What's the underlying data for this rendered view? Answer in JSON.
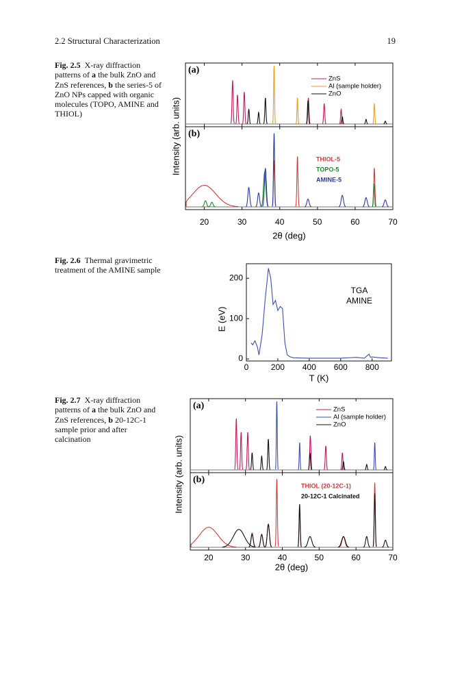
{
  "header": {
    "section": "2.2 Structural Characterization",
    "page": "19"
  },
  "figures": [
    {
      "label": "Fig. 2.5",
      "caption": [
        "X-ray diffraction patterns of ",
        "a",
        " the bulk ZnO and ZnS references, ",
        "b",
        " the series-5 of ZnO NPs capped with organic molecules (TOPO, AMINE and THIOL)"
      ],
      "chart_data": {
        "type": "xrd",
        "xlabel": "2θ (deg)",
        "ylabel": "Intensity (arb. units)",
        "xlim": [
          15,
          70
        ],
        "xticks": [
          20,
          30,
          40,
          50,
          60,
          70
        ],
        "panels": [
          {
            "label": "(a)",
            "legend": "lines",
            "ylim": [
              0,
              100
            ],
            "series": [
              {
                "name": "ZnS",
                "color": "#c2185b",
                "x": [
                  27.5,
                  28.8,
                  30.6,
                  47.6,
                  51.8,
                  56.3
                ],
                "values": [
                  75,
                  50,
                  55,
                  45,
                  35,
                  25
                ],
                "widths": [
                  0.15,
                  0.15,
                  0.15,
                  0.15,
                  0.15,
                  0.15
                ]
              },
              {
                "name": "Al (sample holder)",
                "color": "#f39c12",
                "x": [
                  38.5,
                  44.7,
                  65.1
                ],
                "values": [
                  100,
                  45,
                  35
                ],
                "widths": [
                  0.12,
                  0.12,
                  0.12
                ]
              },
              {
                "name": "ZnO",
                "color": "#111111",
                "x": [
                  31.8,
                  34.4,
                  36.2,
                  47.5,
                  56.6,
                  62.9,
                  68
                ],
                "values": [
                  25,
                  20,
                  45,
                  40,
                  12,
                  8,
                  5
                ],
                "widths": [
                  0.15,
                  0.15,
                  0.15,
                  0.15,
                  0.15,
                  0.15,
                  0.15
                ]
              }
            ]
          },
          {
            "label": "(b)",
            "legend": "text",
            "ylim": [
              0,
              100
            ],
            "series": [
              {
                "name": "THIOL-5",
                "color": "#d43a3a",
                "x": [
                  20,
                  38.5,
                  44.7,
                  65.1
                ],
                "values": [
                  28,
                  60,
                  65,
                  50
                ],
                "widths": [
                  3,
                  0.15,
                  0.15,
                  0.15
                ]
              },
              {
                "name": "TOPO-5",
                "color": "#1a8a2a",
                "x": [
                  20.3,
                  22,
                  36,
                  65
                ],
                "values": [
                  8,
                  6,
                  45,
                  30
                ],
                "widths": [
                  0.3,
                  0.3,
                  0.3,
                  0.15
                ]
              },
              {
                "name": "AMINE-5",
                "color": "#2b3aa8",
                "x": [
                  31.8,
                  34.4,
                  36.2,
                  38.5,
                  47.5,
                  56.6,
                  62.9,
                  68
                ],
                "values": [
                  25,
                  18,
                  50,
                  95,
                  10,
                  15,
                  12,
                  9
                ],
                "widths": [
                  0.25,
                  0.25,
                  0.25,
                  0.15,
                  0.3,
                  0.3,
                  0.3,
                  0.3
                ]
              }
            ]
          }
        ]
      }
    },
    {
      "label": "Fig. 2.6",
      "caption": [
        "Thermal gravimetric treatment of the AMINE sample"
      ],
      "chart_data": {
        "type": "line",
        "xlabel": "T (K)",
        "ylabel": "E (eV)",
        "annotation": [
          "TGA",
          "AMINE"
        ],
        "xlim": [
          0,
          923
        ],
        "ylim": [
          -5,
          236
        ],
        "xticks": [
          0,
          200,
          400,
          600,
          800
        ],
        "yticks": [
          0,
          100,
          200
        ],
        "series": [
          {
            "color": "#3a4fb0",
            "x": [
              30,
              40,
              55,
              70,
              80,
              100,
              120,
              140,
              155,
              170,
              185,
              200,
              215,
              230,
              245,
              260,
              280,
              300,
              400,
              600,
              700,
              750,
              780,
              790,
              800,
              850,
              900
            ],
            "values": [
              40,
              35,
              45,
              30,
              10,
              60,
              150,
              225,
              200,
              135,
              145,
              120,
              130,
              125,
              40,
              10,
              5,
              3,
              2,
              2,
              4,
              2,
              12,
              4,
              5,
              3,
              2
            ]
          }
        ]
      }
    },
    {
      "label": "Fig. 2.7",
      "caption": [
        "X-ray diffraction patterns of ",
        "a",
        " the bulk ZnO and ZnS references, ",
        "b",
        " 20-12C-1 sample prior and after calcination"
      ],
      "chart_data": {
        "type": "xrd",
        "xlabel": "2θ (deg)",
        "ylabel": "Intensity (arb. units)",
        "xlim": [
          15,
          70
        ],
        "xticks": [
          20,
          30,
          40,
          50,
          60,
          70
        ],
        "panels": [
          {
            "label": "(a)",
            "legend": "lines",
            "ylim": [
              0,
              100
            ],
            "series": [
              {
                "name": "ZnS",
                "color": "#c2185b",
                "x": [
                  27.5,
                  28.8,
                  30.6,
                  47.6,
                  51.8,
                  56.3
                ],
                "values": [
                  75,
                  55,
                  55,
                  50,
                  35,
                  25
                ],
                "widths": [
                  0.15,
                  0.15,
                  0.15,
                  0.15,
                  0.15,
                  0.15
                ]
              },
              {
                "name": "Al (sample holder)",
                "color": "#3a4fb0",
                "x": [
                  38.5,
                  44.7,
                  65.1
                ],
                "values": [
                  100,
                  40,
                  40
                ],
                "widths": [
                  0.12,
                  0.12,
                  0.12
                ]
              },
              {
                "name": "ZnO",
                "color": "#111111",
                "x": [
                  31.8,
                  34.4,
                  36.2,
                  47.5,
                  56.6,
                  62.9,
                  68
                ],
                "values": [
                  25,
                  20,
                  45,
                  25,
                  12,
                  8,
                  5
                ],
                "widths": [
                  0.15,
                  0.15,
                  0.15,
                  0.15,
                  0.15,
                  0.15,
                  0.15
                ]
              }
            ]
          },
          {
            "label": "(b)",
            "legend": "text",
            "ylim": [
              0,
              100
            ],
            "series": [
              {
                "name": "THIOL (20-12C-1)",
                "color": "#d43a3a",
                "x": [
                  20,
                  31.8,
                  34.4,
                  36.2,
                  38.5,
                  44.7,
                  56.6,
                  65.1
                ],
                "values": [
                  28,
                  20,
                  18,
                  32,
                  95,
                  55,
                  15,
                  90
                ],
                "widths": [
                  2.5,
                  0.3,
                  0.3,
                  0.3,
                  0.15,
                  0.15,
                  0.4,
                  0.15
                ]
              },
              {
                "name": "20-12C-1 Calcinated",
                "color": "#111111",
                "x": [
                  28.2,
                  31.8,
                  34.4,
                  36.2,
                  44.7,
                  47.5,
                  56.6,
                  62.9,
                  65.1,
                  68
                ],
                "values": [
                  25,
                  18,
                  18,
                  32,
                  60,
                  15,
                  15,
                  15,
                  75,
                  10
                ],
                "widths": [
                  1.5,
                  0.3,
                  0.3,
                  0.3,
                  0.15,
                  0.5,
                  0.5,
                  0.3,
                  0.15,
                  0.3
                ]
              }
            ]
          }
        ]
      }
    }
  ]
}
